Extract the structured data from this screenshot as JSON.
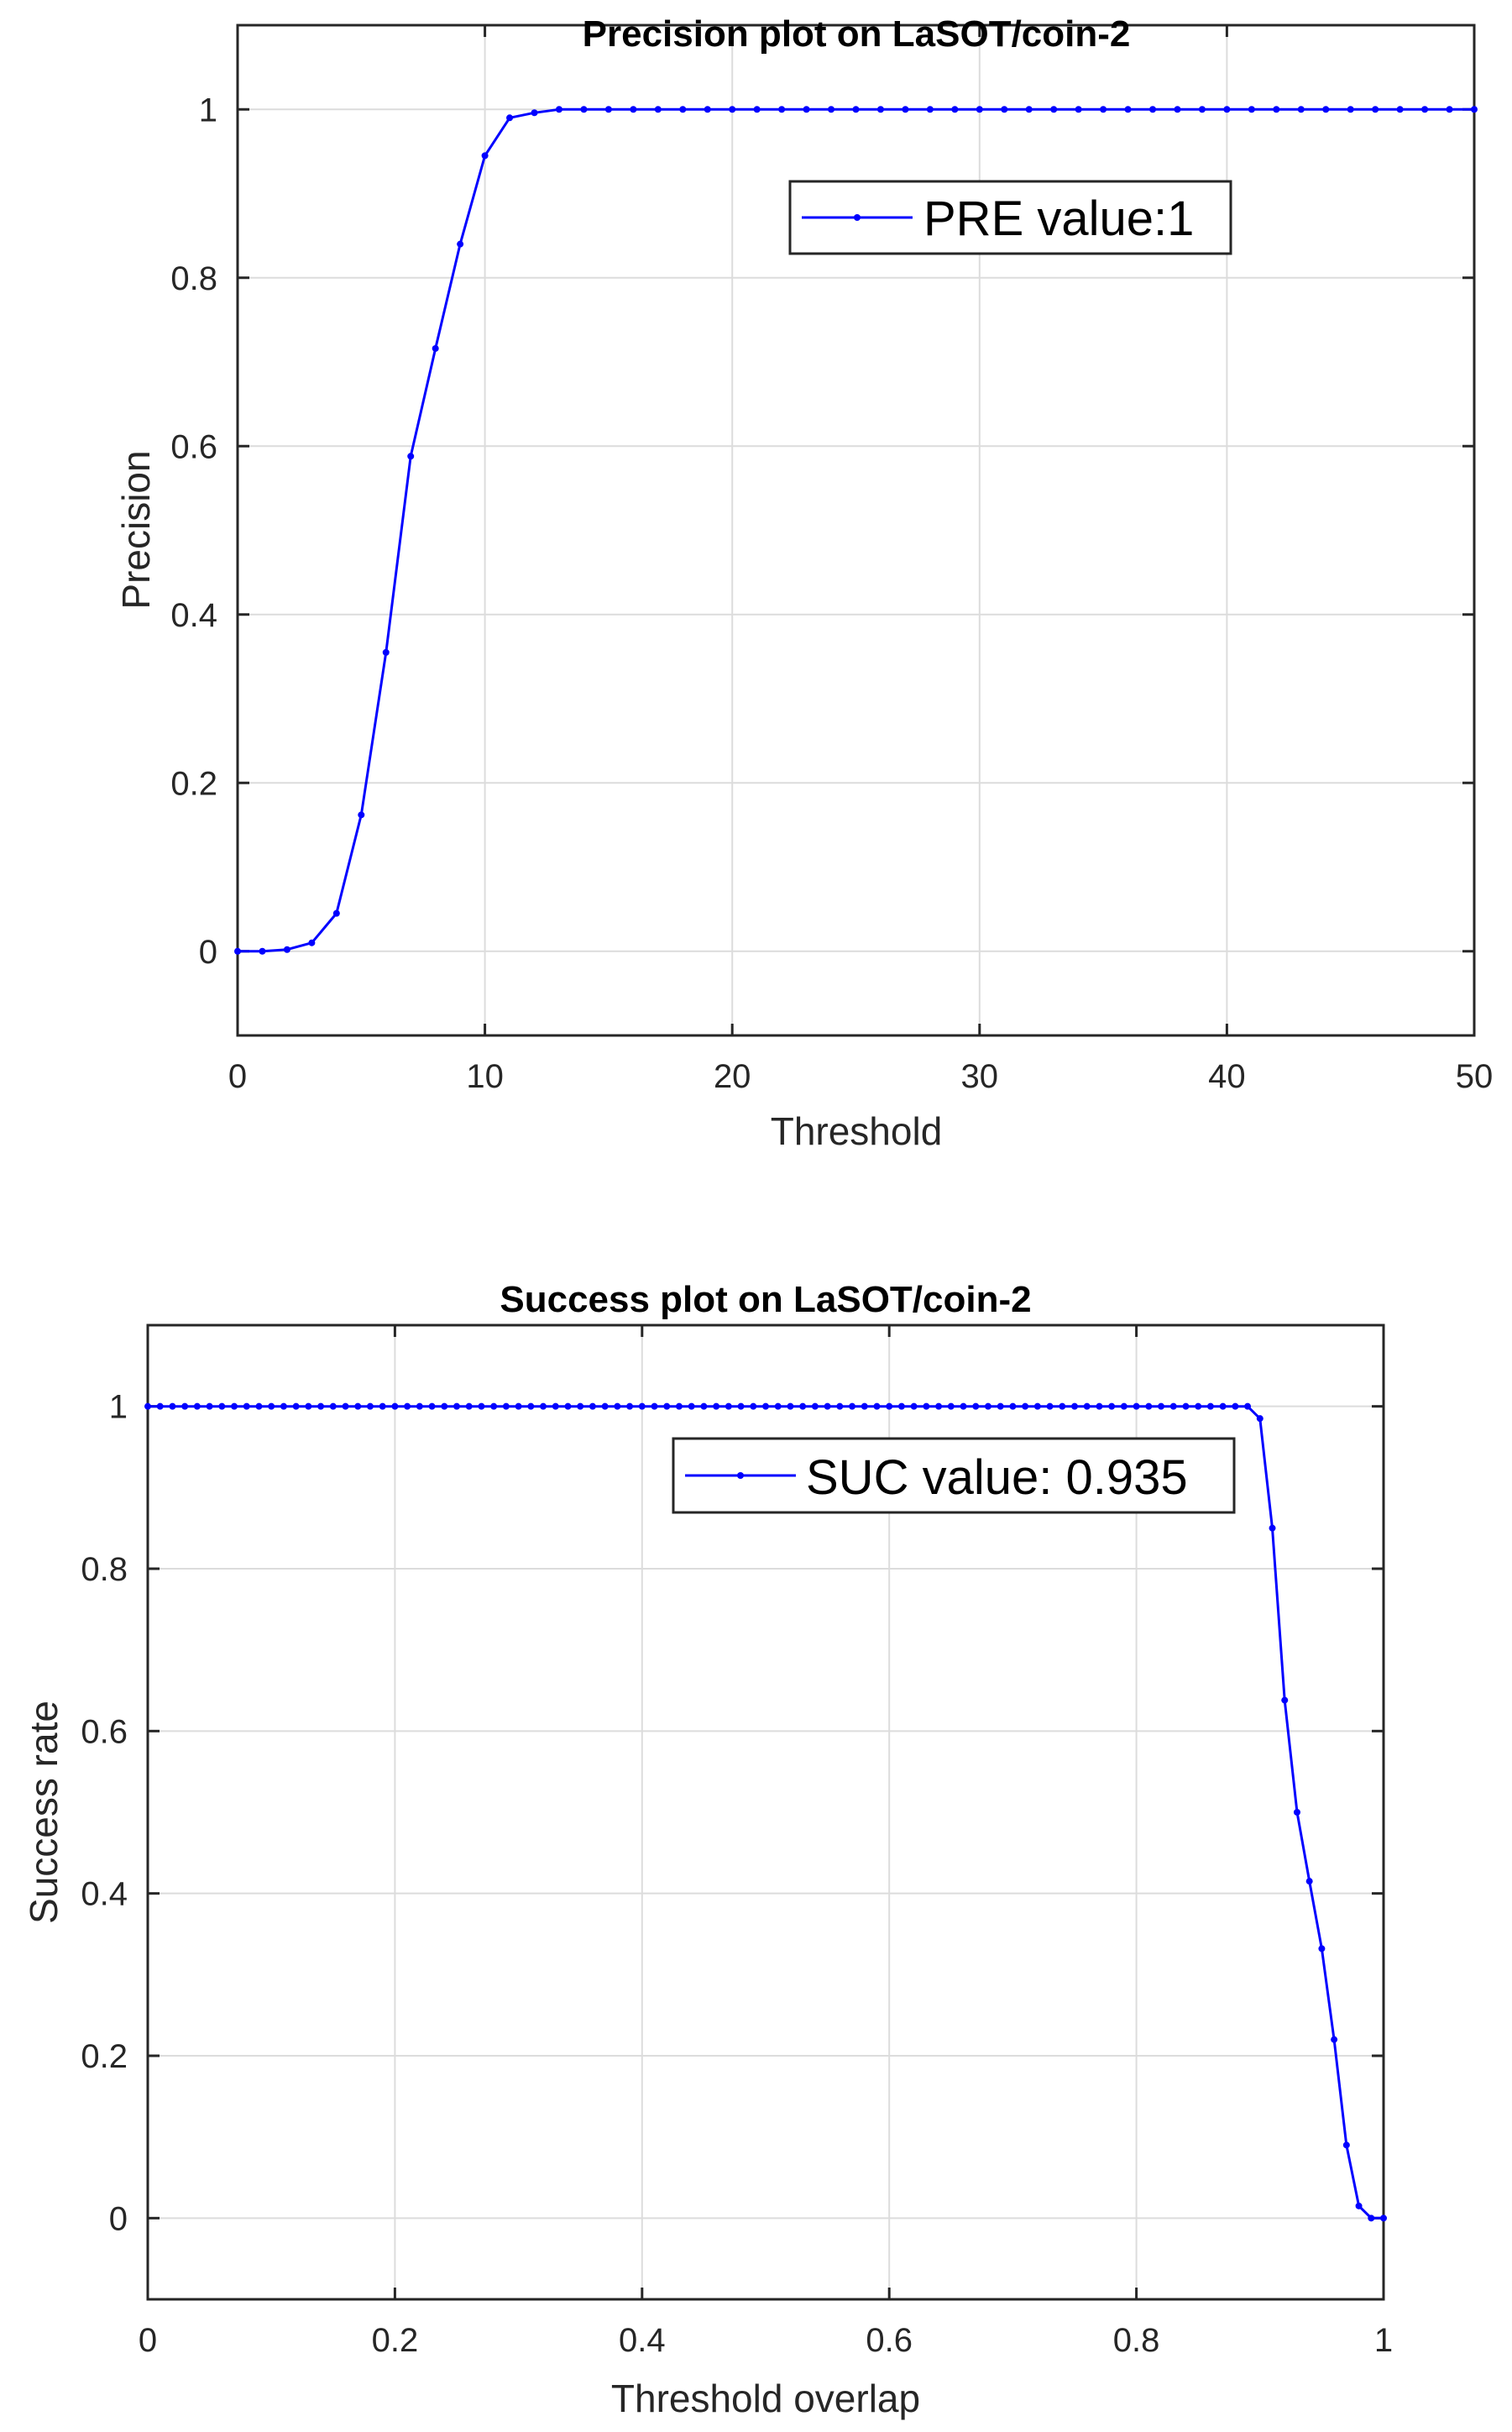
{
  "chart_data": [
    {
      "type": "line",
      "title": "Precision plot on LaSOT/coin-2",
      "xlabel": "Threshold",
      "ylabel": "Precision",
      "xlim": [
        0,
        50
      ],
      "ylim": [
        -0.1,
        1.1
      ],
      "xticks": [
        0,
        10,
        20,
        30,
        40,
        50
      ],
      "xtick_labels": [
        "0",
        "10",
        "20",
        "30",
        "40",
        "50"
      ],
      "yticks": [
        0,
        0.2,
        0.4,
        0.6,
        0.8,
        1
      ],
      "ytick_labels": [
        "0",
        "0.2",
        "0.4",
        "0.6",
        "0.8",
        "1"
      ],
      "grid": true,
      "legend_position": "top-right",
      "color": "#0000ff",
      "series": [
        {
          "name": "PRE value:1",
          "x": [
            0,
            1,
            2,
            3,
            4,
            5,
            6,
            7,
            8,
            9,
            10,
            11,
            12,
            13,
            14,
            15,
            16,
            17,
            18,
            19,
            20,
            21,
            22,
            23,
            24,
            25,
            26,
            27,
            28,
            29,
            30,
            31,
            32,
            33,
            34,
            35,
            36,
            37,
            38,
            39,
            40,
            41,
            42,
            43,
            44,
            45,
            46,
            47,
            48,
            49,
            50
          ],
          "values": [
            0,
            0,
            0.002,
            0.01,
            0.045,
            0.162,
            0.355,
            0.588,
            0.716,
            0.84,
            0.945,
            0.99,
            0.996,
            1,
            1,
            1,
            1,
            1,
            1,
            1,
            1,
            1,
            1,
            1,
            1,
            1,
            1,
            1,
            1,
            1,
            1,
            1,
            1,
            1,
            1,
            1,
            1,
            1,
            1,
            1,
            1,
            1,
            1,
            1,
            1,
            1,
            1,
            1,
            1,
            1,
            1
          ]
        }
      ]
    },
    {
      "type": "line",
      "title": "Success plot on LaSOT/coin-2",
      "xlabel": "Threshold overlap",
      "ylabel": "Success rate",
      "xlim": [
        0,
        1
      ],
      "ylim": [
        -0.1,
        1.1
      ],
      "xticks": [
        0,
        0.2,
        0.4,
        0.6,
        0.8,
        1
      ],
      "xtick_labels": [
        "0",
        "0.2",
        "0.4",
        "0.6",
        "0.8",
        "1"
      ],
      "yticks": [
        0,
        0.2,
        0.4,
        0.6,
        0.8,
        1
      ],
      "ytick_labels": [
        "0",
        "0.2",
        "0.4",
        "0.6",
        "0.8",
        "1"
      ],
      "grid": true,
      "legend_position": "top-right",
      "color": "#0000ff",
      "series": [
        {
          "name": "SUC value: 0.935",
          "x": [
            0,
            0.01,
            0.02,
            0.03,
            0.04,
            0.05,
            0.06,
            0.07,
            0.08,
            0.09,
            0.1,
            0.11,
            0.12,
            0.13,
            0.14,
            0.15,
            0.16,
            0.17,
            0.18,
            0.19,
            0.2,
            0.21,
            0.22,
            0.23,
            0.24,
            0.25,
            0.26,
            0.27,
            0.28,
            0.29,
            0.3,
            0.31,
            0.32,
            0.33,
            0.34,
            0.35,
            0.36,
            0.37,
            0.38,
            0.39,
            0.4,
            0.41,
            0.42,
            0.43,
            0.44,
            0.45,
            0.46,
            0.47,
            0.48,
            0.49,
            0.5,
            0.51,
            0.52,
            0.53,
            0.54,
            0.55,
            0.56,
            0.57,
            0.58,
            0.59,
            0.6,
            0.61,
            0.62,
            0.63,
            0.64,
            0.65,
            0.66,
            0.67,
            0.68,
            0.69,
            0.7,
            0.71,
            0.72,
            0.73,
            0.74,
            0.75,
            0.76,
            0.77,
            0.78,
            0.79,
            0.8,
            0.81,
            0.82,
            0.83,
            0.84,
            0.85,
            0.86,
            0.87,
            0.88,
            0.89,
            0.9,
            0.91,
            0.92,
            0.93,
            0.94,
            0.95,
            0.96,
            0.97,
            0.98,
            0.99,
            1
          ],
          "values": [
            1,
            1,
            1,
            1,
            1,
            1,
            1,
            1,
            1,
            1,
            1,
            1,
            1,
            1,
            1,
            1,
            1,
            1,
            1,
            1,
            1,
            1,
            1,
            1,
            1,
            1,
            1,
            1,
            1,
            1,
            1,
            1,
            1,
            1,
            1,
            1,
            1,
            1,
            1,
            1,
            1,
            1,
            1,
            1,
            1,
            1,
            1,
            1,
            1,
            1,
            1,
            1,
            1,
            1,
            1,
            1,
            1,
            1,
            1,
            1,
            1,
            1,
            1,
            1,
            1,
            1,
            1,
            1,
            1,
            1,
            1,
            1,
            1,
            1,
            1,
            1,
            1,
            1,
            1,
            1,
            1,
            1,
            1,
            1,
            1,
            1,
            1,
            1,
            1,
            1,
            0.985,
            0.85,
            0.638,
            0.5,
            0.415,
            0.332,
            0.22,
            0.09,
            0.015,
            0,
            0
          ]
        }
      ]
    }
  ]
}
